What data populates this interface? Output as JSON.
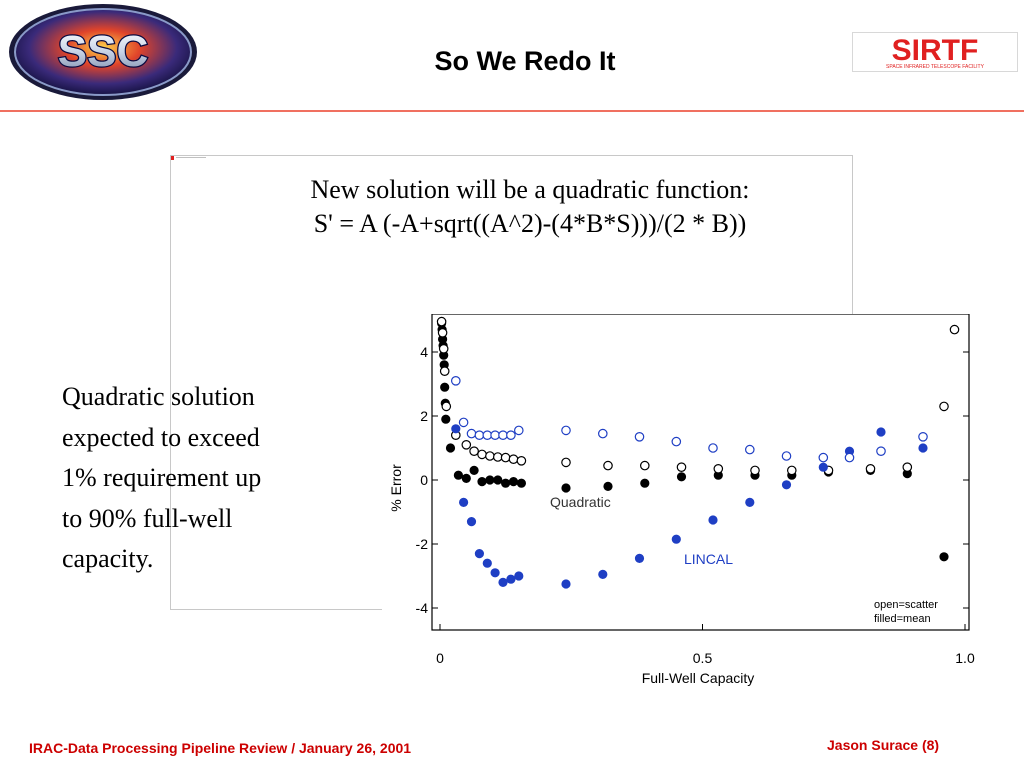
{
  "header": {
    "title": "So We Redo It",
    "left_logo": {
      "text": "SSC",
      "icon": "ssc-logo"
    },
    "right_logo": {
      "text": "SIRTF",
      "subtitle": "SPACE INFRARED TELESCOPE FACILITY",
      "icon": "sirtf-logo"
    },
    "rule_color": "#f07060"
  },
  "formula": {
    "line1": "New solution will be a quadratic function:",
    "line2": "S' = A (-A+sqrt((A^2)-(4*B*S)))/(2 * B))"
  },
  "note": {
    "lines": [
      "Quadratic solution",
      "expected to exceed",
      "1% requirement up",
      "to 90% full-well",
      "capacity."
    ]
  },
  "footer": {
    "left": "IRAC-Data Processing Pipeline Review  /  January 26,  2001",
    "right": "Jason Surace  (8)",
    "color": "#cc0000"
  },
  "chart_data": {
    "type": "scatter",
    "xlabel": "Full-Well Capacity",
    "ylabel": "% Error",
    "xlim": [
      0,
      1.0
    ],
    "ylim": [
      -5,
      5
    ],
    "xticks": [
      "0",
      "0.5",
      "1.0"
    ],
    "yticks": [
      "4",
      "2",
      "0",
      "-2",
      "-4"
    ],
    "annotations": [
      "Quadratic",
      "LINCAL",
      "open=scatter",
      "filled=mean"
    ],
    "series": [
      {
        "name": "Quadratic",
        "marker": "filled",
        "color": "#000000",
        "points": [
          [
            0.003,
            4.9
          ],
          [
            0.004,
            4.7
          ],
          [
            0.005,
            4.4
          ],
          [
            0.006,
            4.2
          ],
          [
            0.007,
            3.9
          ],
          [
            0.008,
            3.6
          ],
          [
            0.009,
            2.9
          ],
          [
            0.01,
            2.4
          ],
          [
            0.011,
            1.9
          ],
          [
            0.02,
            1.0
          ],
          [
            0.035,
            0.15
          ],
          [
            0.05,
            0.05
          ],
          [
            0.065,
            0.3
          ],
          [
            0.08,
            -0.05
          ],
          [
            0.095,
            0.0
          ],
          [
            0.11,
            0.0
          ],
          [
            0.125,
            -0.1
          ],
          [
            0.14,
            -0.05
          ],
          [
            0.155,
            -0.1
          ],
          [
            0.24,
            -0.25
          ],
          [
            0.32,
            -0.2
          ],
          [
            0.39,
            -0.1
          ],
          [
            0.46,
            0.1
          ],
          [
            0.53,
            0.15
          ],
          [
            0.6,
            0.15
          ],
          [
            0.67,
            0.15
          ],
          [
            0.74,
            0.25
          ],
          [
            0.82,
            0.3
          ],
          [
            0.89,
            0.2
          ],
          [
            0.96,
            -2.4
          ]
        ]
      },
      {
        "name": "Quadratic",
        "marker": "open",
        "color": "#000000",
        "points": [
          [
            0.003,
            4.95
          ],
          [
            0.005,
            4.6
          ],
          [
            0.007,
            4.1
          ],
          [
            0.009,
            3.4
          ],
          [
            0.012,
            2.3
          ],
          [
            0.03,
            1.4
          ],
          [
            0.05,
            1.1
          ],
          [
            0.065,
            0.9
          ],
          [
            0.08,
            0.8
          ],
          [
            0.095,
            0.75
          ],
          [
            0.11,
            0.72
          ],
          [
            0.125,
            0.7
          ],
          [
            0.14,
            0.65
          ],
          [
            0.155,
            0.6
          ],
          [
            0.24,
            0.55
          ],
          [
            0.32,
            0.45
          ],
          [
            0.39,
            0.45
          ],
          [
            0.46,
            0.4
          ],
          [
            0.53,
            0.35
          ],
          [
            0.6,
            0.3
          ],
          [
            0.67,
            0.3
          ],
          [
            0.74,
            0.3
          ],
          [
            0.82,
            0.35
          ],
          [
            0.89,
            0.4
          ],
          [
            0.96,
            2.3
          ],
          [
            0.98,
            4.7
          ]
        ]
      },
      {
        "name": "LINCAL",
        "marker": "filled",
        "color": "#1f3fc4",
        "points": [
          [
            0.03,
            1.6
          ],
          [
            0.045,
            -0.7
          ],
          [
            0.06,
            -1.3
          ],
          [
            0.075,
            -2.3
          ],
          [
            0.09,
            -2.6
          ],
          [
            0.105,
            -2.9
          ],
          [
            0.12,
            -3.2
          ],
          [
            0.135,
            -3.1
          ],
          [
            0.15,
            -3.0
          ],
          [
            0.24,
            -3.25
          ],
          [
            0.31,
            -2.95
          ],
          [
            0.38,
            -2.45
          ],
          [
            0.45,
            -1.85
          ],
          [
            0.52,
            -1.25
          ],
          [
            0.59,
            -0.7
          ],
          [
            0.66,
            -0.15
          ],
          [
            0.73,
            0.4
          ],
          [
            0.78,
            0.9
          ],
          [
            0.84,
            1.5
          ],
          [
            0.92,
            1.0
          ]
        ]
      },
      {
        "name": "LINCAL",
        "marker": "open",
        "color": "#1f3fc4",
        "points": [
          [
            0.03,
            3.1
          ],
          [
            0.045,
            1.8
          ],
          [
            0.06,
            1.45
          ],
          [
            0.075,
            1.4
          ],
          [
            0.09,
            1.4
          ],
          [
            0.105,
            1.4
          ],
          [
            0.12,
            1.4
          ],
          [
            0.135,
            1.4
          ],
          [
            0.15,
            1.55
          ],
          [
            0.24,
            1.55
          ],
          [
            0.31,
            1.45
          ],
          [
            0.38,
            1.35
          ],
          [
            0.45,
            1.2
          ],
          [
            0.52,
            1.0
          ],
          [
            0.59,
            0.95
          ],
          [
            0.66,
            0.75
          ],
          [
            0.73,
            0.7
          ],
          [
            0.78,
            0.7
          ],
          [
            0.84,
            0.9
          ],
          [
            0.92,
            1.35
          ]
        ]
      }
    ]
  }
}
